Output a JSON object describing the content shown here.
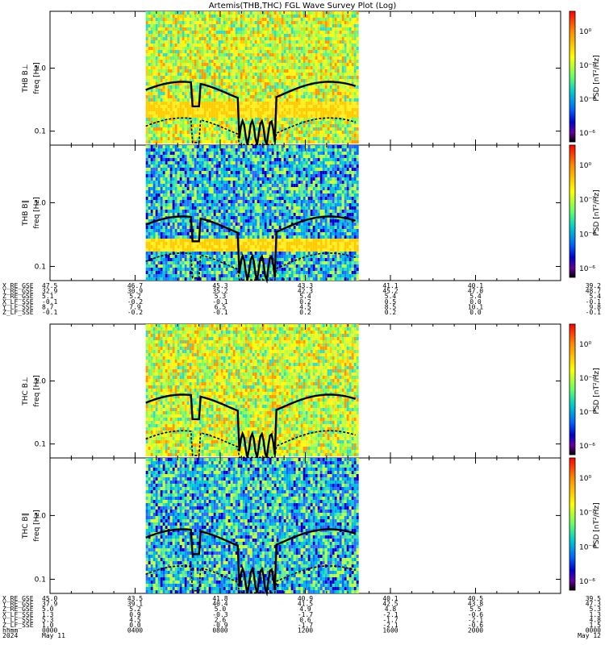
{
  "title": "Artemis(THB,THC) FGL Wave Survey Plot (Log)",
  "colorbar_label": "PSD [nT²/Hz]",
  "colorbar_ticks": [
    "10⁰",
    "10⁻²",
    "10⁻⁴",
    "10⁻⁶"
  ],
  "colors": {
    "colorbar": [
      "#ff0000",
      "#ff8800",
      "#ffff00",
      "#88ff44",
      "#00cccc",
      "#0066ff",
      "#0000cc",
      "#660099",
      "#000000"
    ]
  },
  "chart_data": [
    {
      "type": "heatmap",
      "panel": "THB B⊥",
      "ylabel_top": "THB B⊥",
      "ylabel_bottom": "freq [Hz]",
      "ylim": [
        0.06,
        8
      ],
      "yscale": "log",
      "ytick_labels": [
        "0.1",
        "1.0"
      ],
      "yticks": [
        0.1,
        1.0
      ],
      "x_range": [
        "2024-05-11 00:00",
        "2024-05-12 00:00"
      ],
      "data_span_hours": [
        4.5,
        14.4
      ],
      "tone": "warm"
    },
    {
      "type": "heatmap",
      "panel": "THB B∥",
      "ylabel_top": "THB B∥",
      "ylabel_bottom": "freq [Hz]",
      "ylim": [
        0.06,
        8
      ],
      "yscale": "log",
      "ytick_labels": [
        "0.1",
        "1.0"
      ],
      "yticks": [
        0.1,
        1.0
      ],
      "x_range": [
        "2024-05-11 00:00",
        "2024-05-12 00:00"
      ],
      "data_span_hours": [
        4.5,
        14.4
      ],
      "tone": "cool"
    },
    {
      "type": "heatmap",
      "panel": "THC B⊥",
      "ylabel_top": "THC B⊥",
      "ylabel_bottom": "freq [Hz]",
      "ylim": [
        0.06,
        8
      ],
      "yscale": "log",
      "ytick_labels": [
        "0.1",
        "1.0"
      ],
      "yticks": [
        0.1,
        1.0
      ],
      "x_range": [
        "2024-05-11 00:00",
        "2024-05-12 00:00"
      ],
      "data_span_hours": [
        4.5,
        14.4
      ],
      "tone": "warm"
    },
    {
      "type": "heatmap",
      "panel": "THC B∥",
      "ylabel_top": "THC B∥",
      "ylabel_bottom": "freq [Hz]",
      "ylim": [
        0.06,
        8
      ],
      "yscale": "log",
      "ytick_labels": [
        "0.1",
        "1.0"
      ],
      "yticks": [
        0.1,
        1.0
      ],
      "x_range": [
        "2024-05-11 00:00",
        "2024-05-12 00:00"
      ],
      "data_span_hours": [
        4.5,
        14.4
      ],
      "tone": "cool"
    }
  ],
  "ephem_thb": {
    "rows": [
      {
        "label": "X_RE_GSE",
        "values": [
          "47.5",
          "46.7",
          "45.3",
          "43.3",
          "41.1",
          "40.1",
          "39.2"
        ]
      },
      {
        "label": "Y_RE_GSE",
        "values": [
          "32.9",
          "30.9",
          "35.2",
          "42.3",
          "45.2",
          "47.0",
          "48.7"
        ]
      },
      {
        "label": "Z_RE_GSE",
        "values": [
          "5.1",
          "5.2",
          "5.3",
          "5.4",
          "5.4",
          "5.4",
          "5.4"
        ]
      },
      {
        "label": "X_LF_SSE",
        "values": [
          "-0.1",
          "-0.2",
          "-0.1",
          "0.2",
          "0.5",
          "0.0",
          "-0.1"
        ]
      },
      {
        "label": "Y_LF_SSE",
        "values": [
          "8.7",
          "7.9",
          "6.5",
          "4.5",
          "8.5",
          "10.1",
          "9.8"
        ]
      },
      {
        "label": "Z_LF_SSE",
        "values": [
          "-0.1",
          "-0.2",
          "-0.1",
          "0.2",
          "0.2",
          "0.0",
          "-0.1"
        ]
      }
    ]
  },
  "ephem_thc": {
    "rows": [
      {
        "label": "X_RE_GSE",
        "values": [
          "45.0",
          "43.5",
          "41.8",
          "40.9",
          "40.1",
          "40.5",
          "39.5"
        ]
      },
      {
        "label": "Y_RE_GSE",
        "values": [
          "37.9",
          "39.1",
          "40.4",
          "41.5",
          "42.5",
          "43.8",
          "47.3"
        ]
      },
      {
        "label": "Z_RE_GSE",
        "values": [
          "5.0",
          "5.2",
          "5.0",
          "4.9",
          "4.8",
          "5.5",
          "5.3"
        ]
      },
      {
        "label": "X_LF_SSE",
        "values": [
          "1.3",
          "0.9",
          "-0.3",
          "-1.7",
          "-2.1",
          "-0.6",
          "1.3"
        ]
      },
      {
        "label": "Y_LF_SSE",
        "values": [
          "5.3",
          "4.5",
          "2.6",
          "0.6",
          "-1.7",
          "-2.1",
          "4.8"
        ]
      },
      {
        "label": "Z_LF_SSE",
        "values": [
          "1.0",
          "0.0",
          "-0.9",
          "-1.7",
          "-2.1",
          "-0.6",
          "1.5"
        ]
      }
    ],
    "time_row": {
      "label": "hhmm",
      "values": [
        "0000",
        "0400",
        "0800",
        "1200",
        "1600",
        "2000",
        "0000"
      ]
    },
    "date_row": {
      "label": "2024",
      "values": [
        "May 11",
        "May 12"
      ]
    }
  }
}
